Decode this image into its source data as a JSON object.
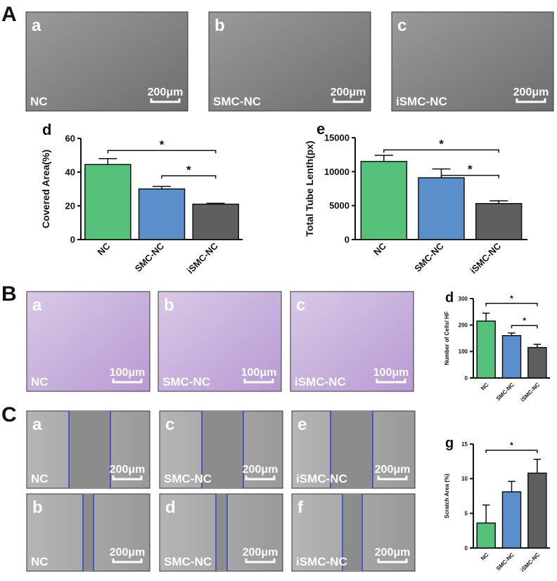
{
  "figure": {
    "sections": [
      {
        "label": "A",
        "images": [
          {
            "letter": "a",
            "caption": "NC",
            "scale": "200μm"
          },
          {
            "letter": "b",
            "caption": "SMC-NC",
            "scale": "200μm"
          },
          {
            "letter": "c",
            "caption": "iSMC-NC",
            "scale": "200μm"
          }
        ]
      },
      {
        "label": "B",
        "images": [
          {
            "letter": "a",
            "caption": "NC",
            "scale": "100μm"
          },
          {
            "letter": "b",
            "caption": "SMC-NC",
            "scale": "100μm"
          },
          {
            "letter": "c",
            "caption": "iSMC-NC",
            "scale": "100μm"
          }
        ]
      },
      {
        "label": "C",
        "images": [
          {
            "letter": "a",
            "caption": "NC",
            "scale": "200μm"
          },
          {
            "letter": "c",
            "caption": "SMC-NC",
            "scale": "200μm"
          },
          {
            "letter": "e",
            "caption": "iSMC-NC",
            "scale": "200μm"
          },
          {
            "letter": "b",
            "caption": "NC",
            "scale": "200μm"
          },
          {
            "letter": "d",
            "caption": "SMC-NC",
            "scale": "200μm"
          },
          {
            "letter": "f",
            "caption": "iSMC-NC",
            "scale": "200μm"
          }
        ]
      }
    ]
  },
  "chart_data": [
    {
      "type": "bar",
      "panel": "d",
      "y_label": "Covered Area(%)",
      "categories": [
        "NC",
        "SMC-NC",
        "iSMC-NC"
      ],
      "values": [
        44.5,
        30,
        21
      ],
      "errors": [
        3.5,
        1.5,
        0.5
      ],
      "colors": [
        "#55c17a",
        "#5b8fcb",
        "#5f5f5f"
      ],
      "ylim": [
        0,
        60
      ],
      "yticks": [
        0,
        20,
        40,
        60
      ],
      "significance": [
        {
          "from": 0,
          "to": 2,
          "label": "*"
        },
        {
          "from": 1,
          "to": 2,
          "label": "*"
        }
      ]
    },
    {
      "type": "bar",
      "panel": "e",
      "y_label": "Total Tube Lenth(px)",
      "categories": [
        "NC",
        "SMC-NC",
        "iSMC-NC"
      ],
      "values": [
        11500,
        9100,
        5300
      ],
      "errors": [
        900,
        1300,
        400
      ],
      "colors": [
        "#55c17a",
        "#5b8fcb",
        "#5f5f5f"
      ],
      "ylim": [
        0,
        15000
      ],
      "yticks": [
        0,
        5000,
        10000,
        15000
      ],
      "significance": [
        {
          "from": 0,
          "to": 2,
          "label": "*"
        },
        {
          "from": 1,
          "to": 2,
          "label": "*"
        }
      ]
    },
    {
      "type": "bar",
      "panel": "d",
      "y_label": "Number of Cells/ HF",
      "categories": [
        "NC",
        "SMC-NC",
        "iSMC-NC"
      ],
      "values": [
        215,
        160,
        115
      ],
      "errors": [
        30,
        10,
        12
      ],
      "colors": [
        "#55c17a",
        "#5b8fcb",
        "#5f5f5f"
      ],
      "ylim": [
        0,
        300
      ],
      "yticks": [
        0,
        100,
        200,
        300
      ],
      "significance": [
        {
          "from": 0,
          "to": 2,
          "label": "*"
        },
        {
          "from": 1,
          "to": 2,
          "label": "*"
        }
      ]
    },
    {
      "type": "bar",
      "panel": "g",
      "y_label": "Scratch Area (%)",
      "categories": [
        "NC",
        "SMC-NC",
        "iSMC-NC"
      ],
      "values": [
        3.6,
        8.1,
        10.8
      ],
      "errors": [
        2.6,
        1.5,
        2.0
      ],
      "colors": [
        "#55c17a",
        "#5b8fcb",
        "#5f5f5f"
      ],
      "ylim": [
        0,
        15
      ],
      "yticks": [
        0,
        5,
        10,
        15
      ],
      "significance": [
        {
          "from": 0,
          "to": 2,
          "label": "*"
        }
      ]
    }
  ]
}
